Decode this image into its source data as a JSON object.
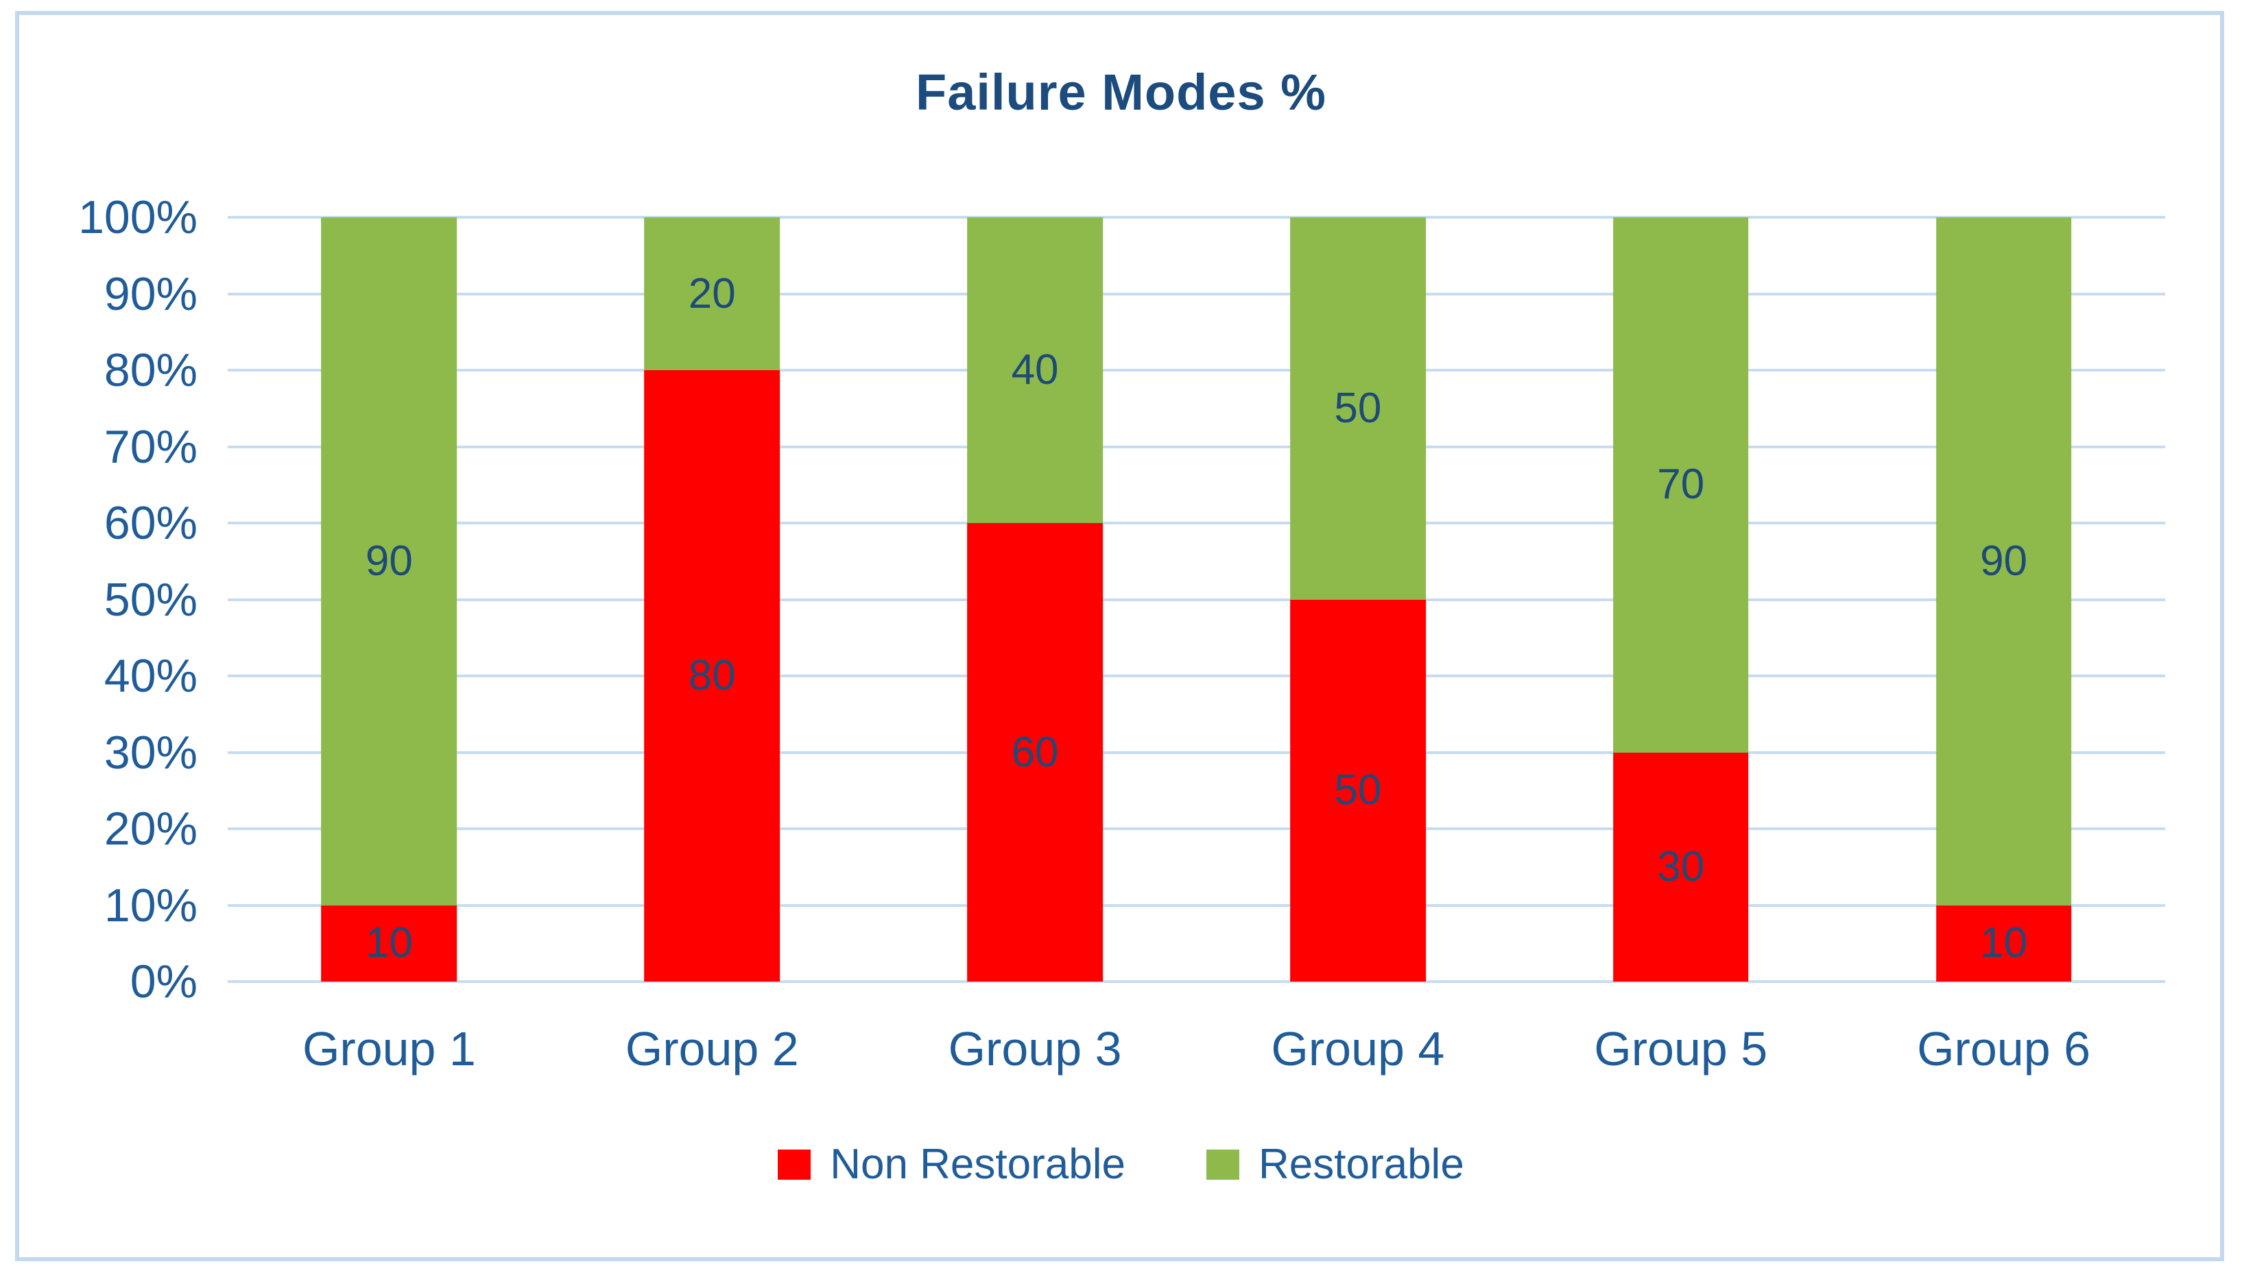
{
  "title": "Failure Modes %",
  "colors": {
    "non_restorable": "#ff0000",
    "restorable": "#8dba4b",
    "title_text": "#1c4b7d",
    "axis_text": "#1f5c99",
    "data_label_text": "#1e4a78",
    "gridline": "#c7dcf0",
    "frame_border": "#c3d9ef",
    "background": "#ffffff"
  },
  "chart_data": {
    "type": "bar",
    "stacked": true,
    "title": "Failure Modes %",
    "categories": [
      "Group 1",
      "Group 2",
      "Group 3",
      "Group 4",
      "Group 5",
      "Group 6"
    ],
    "series": [
      {
        "name": "Non Restorable",
        "color": "#ff0000",
        "values": [
          10,
          80,
          60,
          50,
          30,
          10
        ]
      },
      {
        "name": "Restorable",
        "color": "#8dba4b",
        "values": [
          90,
          20,
          40,
          50,
          70,
          90
        ]
      }
    ],
    "y_ticks": [
      "0%",
      "10%",
      "20%",
      "30%",
      "40%",
      "50%",
      "60%",
      "70%",
      "80%",
      "90%",
      "100%"
    ],
    "ylim": [
      0,
      100
    ],
    "grid": true,
    "data_labels": true,
    "legend_position": "bottom"
  }
}
